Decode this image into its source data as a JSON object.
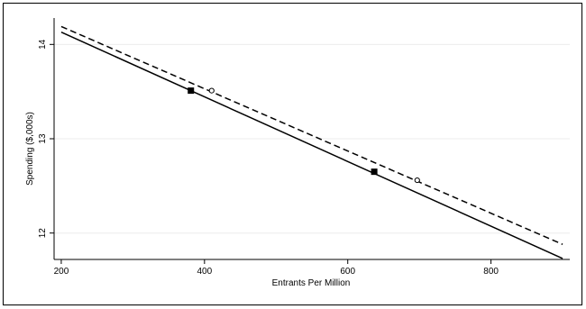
{
  "chart_data": {
    "type": "line",
    "xlabel": "Entrants Per Million",
    "ylabel": "Spending ($,000s)",
    "xlim": [
      190,
      910
    ],
    "ylim": [
      11.72,
      14.28
    ],
    "x_ticks": [
      200,
      400,
      600,
      800
    ],
    "y_ticks": [
      12,
      13,
      14
    ],
    "grid": true,
    "series": [
      {
        "style": "solid",
        "x": [
          200,
          900
        ],
        "y": [
          14.13,
          11.73
        ],
        "markers": [
          {
            "shape": "filled-square",
            "x": 381,
            "y": 13.51
          },
          {
            "shape": "filled-square",
            "x": 637,
            "y": 12.65
          }
        ]
      },
      {
        "style": "dashed",
        "x": [
          200,
          900
        ],
        "y": [
          14.19,
          11.88
        ],
        "markers": [
          {
            "shape": "hollow-circle",
            "x": 410,
            "y": 13.51
          },
          {
            "shape": "hollow-circle",
            "x": 697,
            "y": 12.56
          }
        ]
      }
    ]
  }
}
